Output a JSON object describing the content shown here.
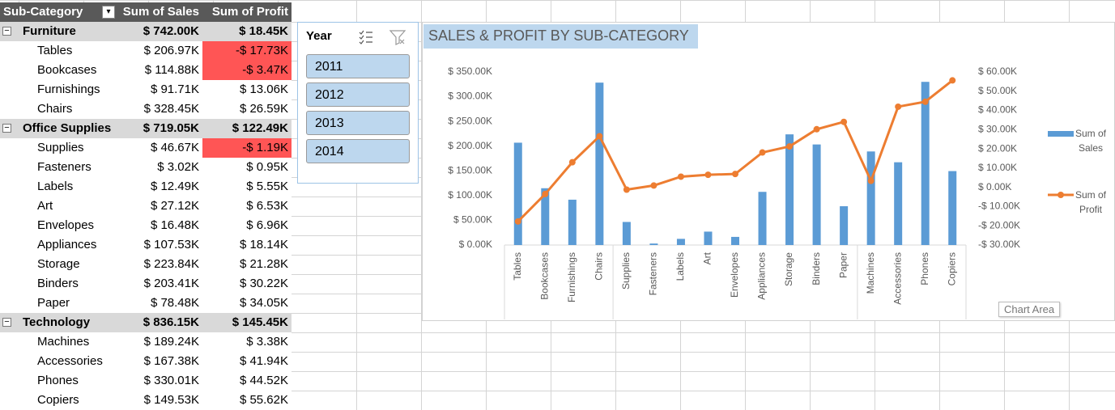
{
  "pivot": {
    "headers": [
      "Sub-Category",
      "Sum of Sales",
      "Sum of Profit"
    ],
    "negative_color": "#ff5555",
    "groups": [
      {
        "label": "Furniture",
        "sales": "$ 742.00K",
        "profit": "$ 18.45K",
        "items": [
          {
            "label": "Tables",
            "sales": "$ 206.97K",
            "profit": "-$ 17.73K"
          },
          {
            "label": "Bookcases",
            "sales": "$ 114.88K",
            "profit": "-$ 3.47K"
          },
          {
            "label": "Furnishings",
            "sales": "$ 91.71K",
            "profit": "$ 13.06K"
          },
          {
            "label": "Chairs",
            "sales": "$ 328.45K",
            "profit": "$ 26.59K"
          }
        ]
      },
      {
        "label": "Office Supplies",
        "sales": "$ 719.05K",
        "profit": "$ 122.49K",
        "items": [
          {
            "label": "Supplies",
            "sales": "$ 46.67K",
            "profit": "-$ 1.19K"
          },
          {
            "label": "Fasteners",
            "sales": "$ 3.02K",
            "profit": "$ 0.95K"
          },
          {
            "label": "Labels",
            "sales": "$ 12.49K",
            "profit": "$ 5.55K"
          },
          {
            "label": "Art",
            "sales": "$ 27.12K",
            "profit": "$ 6.53K"
          },
          {
            "label": "Envelopes",
            "sales": "$ 16.48K",
            "profit": "$ 6.96K"
          },
          {
            "label": "Appliances",
            "sales": "$ 107.53K",
            "profit": "$ 18.14K"
          },
          {
            "label": "Storage",
            "sales": "$ 223.84K",
            "profit": "$ 21.28K"
          },
          {
            "label": "Binders",
            "sales": "$ 203.41K",
            "profit": "$ 30.22K"
          },
          {
            "label": "Paper",
            "sales": "$ 78.48K",
            "profit": "$ 34.05K"
          }
        ]
      },
      {
        "label": "Technology",
        "sales": "$ 836.15K",
        "profit": "$ 145.45K",
        "items": [
          {
            "label": "Machines",
            "sales": "$ 189.24K",
            "profit": "$ 3.38K"
          },
          {
            "label": "Accessories",
            "sales": "$ 167.38K",
            "profit": "$ 41.94K"
          },
          {
            "label": "Phones",
            "sales": "$ 330.01K",
            "profit": "$ 44.52K"
          },
          {
            "label": "Copiers",
            "sales": "$ 149.53K",
            "profit": "$ 55.62K"
          }
        ]
      }
    ]
  },
  "slicer": {
    "title": "Year",
    "items": [
      "2011",
      "2012",
      "2013",
      "2014"
    ]
  },
  "tooltip": "Chart Area",
  "chart_data": {
    "type": "bar",
    "title": "SALES & PROFIT BY SUB-CATEGORY",
    "categories": [
      "Tables",
      "Bookcases",
      "Furnishings",
      "Chairs",
      "Supplies",
      "Fasteners",
      "Labels",
      "Art",
      "Envelopes",
      "Appliances",
      "Storage",
      "Binders",
      "Paper",
      "Machines",
      "Accessories",
      "Phones",
      "Copiers"
    ],
    "series": [
      {
        "name": "Sum of Sales",
        "type": "bar",
        "color": "#5b9bd5",
        "values": [
          206.97,
          114.88,
          91.71,
          328.45,
          46.67,
          3.02,
          12.49,
          27.12,
          16.48,
          107.53,
          223.84,
          203.41,
          78.48,
          189.24,
          167.38,
          330.01,
          149.53
        ]
      },
      {
        "name": "Sum of Profit",
        "type": "line",
        "axis": "y2",
        "color": "#ed7d31",
        "values": [
          -17.73,
          -3.47,
          13.06,
          26.59,
          -1.19,
          0.95,
          5.55,
          6.53,
          6.96,
          18.14,
          21.28,
          30.22,
          34.05,
          3.38,
          41.94,
          44.52,
          55.62
        ]
      }
    ],
    "ylim": [
      0,
      350
    ],
    "yticks": [
      {
        "value": 0,
        "label": "$ 0.00K"
      },
      {
        "value": 50,
        "label": "$ 50.00K"
      },
      {
        "value": 100,
        "label": "$ 100.00K"
      },
      {
        "value": 150,
        "label": "$ 150.00K"
      },
      {
        "value": 200,
        "label": "$ 200.00K"
      },
      {
        "value": 250,
        "label": "$ 250.00K"
      },
      {
        "value": 300,
        "label": "$ 300.00K"
      },
      {
        "value": 350,
        "label": "$ 350.00K"
      }
    ],
    "y2lim": [
      -30,
      60
    ],
    "y2ticks": [
      {
        "value": -30,
        "label": "-$ 30.00K"
      },
      {
        "value": -20,
        "label": "-$ 20.00K"
      },
      {
        "value": -10,
        "label": "-$ 10.00K"
      },
      {
        "value": 0,
        "label": "$ 0.00K"
      },
      {
        "value": 10,
        "label": "$ 10.00K"
      },
      {
        "value": 20,
        "label": "$ 20.00K"
      },
      {
        "value": 30,
        "label": "$ 30.00K"
      },
      {
        "value": 40,
        "label": "$ 40.00K"
      },
      {
        "value": 50,
        "label": "$ 50.00K"
      },
      {
        "value": 60,
        "label": "$ 60.00K"
      }
    ],
    "grid": false,
    "legend": "right"
  }
}
